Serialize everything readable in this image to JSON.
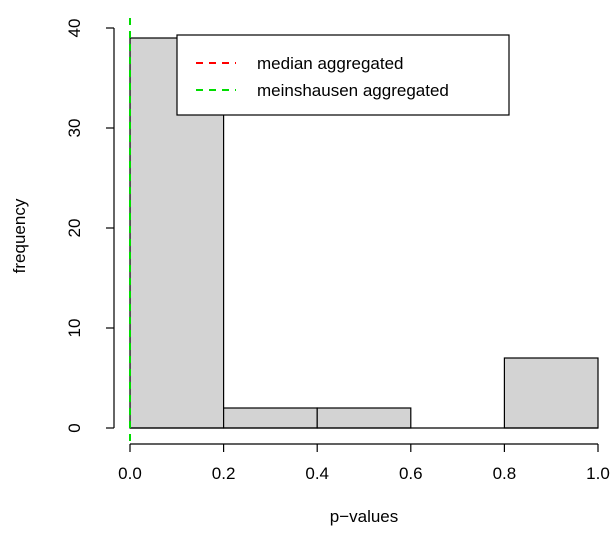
{
  "chart_data": {
    "type": "bar",
    "subtype": "histogram",
    "title": "",
    "xlabel": "p−values",
    "ylabel": "frequency",
    "bins": [
      {
        "start": 0.0,
        "end": 0.2,
        "count": 39
      },
      {
        "start": 0.2,
        "end": 0.4,
        "count": 2
      },
      {
        "start": 0.4,
        "end": 0.6,
        "count": 2
      },
      {
        "start": 0.6,
        "end": 0.8,
        "count": 0
      },
      {
        "start": 0.8,
        "end": 1.0,
        "count": 7
      }
    ],
    "xlim": [
      0,
      1
    ],
    "ylim": [
      0,
      40
    ],
    "x_ticks": [
      0,
      0.2,
      0.4,
      0.6,
      0.8,
      1.0
    ],
    "x_tick_labels": [
      "0.0",
      "0.2",
      "0.4",
      "0.6",
      "0.8",
      "1.0"
    ],
    "y_ticks": [
      0,
      10,
      20,
      30,
      40
    ],
    "y_tick_labels": [
      "0",
      "10",
      "20",
      "30",
      "40"
    ],
    "bar_color": "#d3d3d3",
    "bar_edge_color": "#000000",
    "vlines": [
      {
        "name": "median aggregated",
        "x": 0.0,
        "color": "#ff0000",
        "style": "dashed"
      },
      {
        "name": "meinshausen aggregated",
        "x": 0.0,
        "color": "#00dd00",
        "style": "dashed"
      }
    ],
    "legend": {
      "placement": "top-right",
      "entries": [
        "median aggregated",
        "meinshausen aggregated"
      ]
    },
    "grid": false
  }
}
